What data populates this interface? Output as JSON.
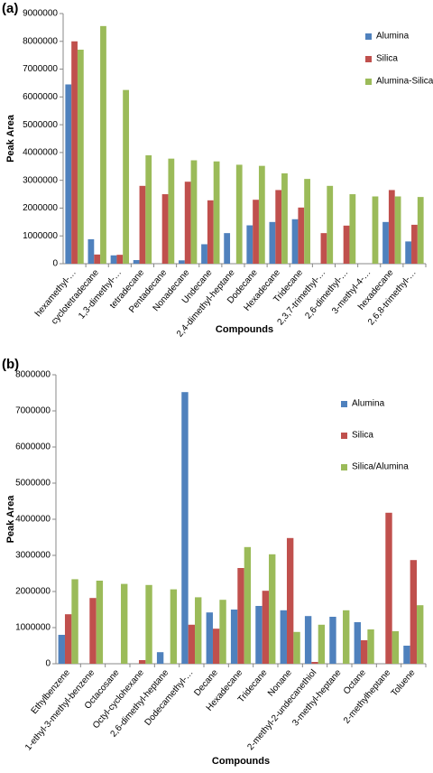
{
  "chart_data": [
    {
      "type": "bar",
      "title": "(a)",
      "ylabel": "Peak Area",
      "xlabel": "Compounds",
      "legend": "upper right",
      "grid": false,
      "ylim": [
        0,
        9000000
      ],
      "yticks": [
        0,
        1000000,
        2000000,
        3000000,
        4000000,
        5000000,
        6000000,
        7000000,
        8000000,
        9000000
      ],
      "categories": [
        "hexamethyl-…",
        "cyclotetradecane",
        "1,3-dimethyl-…",
        "tetradecane",
        "Pentadecane",
        "Nonadecane",
        "Undecane",
        "2,4-dimethyl-heptane",
        "Dodecane",
        "Hexadecane",
        "Tridecane",
        "2,3,7-trimethyl-…",
        "2,6-dimethyl-…",
        "3-methyl-4-…",
        "hexadecane",
        "2,6,8-trimethyl-…"
      ],
      "series": [
        {
          "name": "Alumina",
          "color": "#4f81bd",
          "values": [
            6450000,
            880000,
            300000,
            130000,
            0,
            120000,
            700000,
            1100000,
            1380000,
            1500000,
            1600000,
            0,
            0,
            0,
            1500000,
            800000
          ]
        },
        {
          "name": "Silica",
          "color": "#c0504d",
          "values": [
            8000000,
            330000,
            320000,
            2800000,
            2500000,
            2950000,
            2280000,
            0,
            2300000,
            2650000,
            2020000,
            1100000,
            1370000,
            0,
            2650000,
            1400000
          ]
        },
        {
          "name": "Alumina-Silica",
          "color": "#9bbb59",
          "values": [
            7700000,
            8550000,
            6250000,
            3900000,
            3780000,
            3720000,
            3680000,
            3560000,
            3520000,
            3250000,
            3050000,
            2800000,
            2500000,
            2420000,
            2420000,
            2400000
          ]
        }
      ]
    },
    {
      "type": "bar",
      "title": "(b)",
      "ylabel": "Peak Area",
      "xlabel": "Compounds",
      "legend": "upper right",
      "grid": false,
      "ylim": [
        0,
        8000000
      ],
      "yticks": [
        0,
        1000000,
        2000000,
        3000000,
        4000000,
        5000000,
        6000000,
        7000000,
        8000000
      ],
      "categories": [
        "Ethylbenzene",
        "1-ethyl-3-methyl-benzene",
        "Octacosane",
        "Octyl-cyclohexane",
        "2,6-dimethyl-heptane",
        "Dodecamethyl-…",
        "Decane",
        "Hexadecane",
        "Tridecane",
        "Nonane",
        "2-methyl-2-undecanethiol",
        "3-methyl-heptane",
        "Octane",
        "2-methylheptane",
        "Toluene"
      ],
      "series": [
        {
          "name": "Alumina",
          "color": "#4f81bd",
          "values": [
            800000,
            0,
            0,
            0,
            320000,
            7520000,
            1420000,
            1500000,
            1600000,
            1480000,
            1320000,
            1300000,
            1150000,
            0,
            500000
          ]
        },
        {
          "name": "Silica",
          "color": "#c0504d",
          "values": [
            1370000,
            1820000,
            0,
            100000,
            0,
            1080000,
            970000,
            2650000,
            2020000,
            3480000,
            50000,
            0,
            650000,
            4180000,
            2870000
          ]
        },
        {
          "name": "Silica/Alumina",
          "color": "#9bbb59",
          "values": [
            2340000,
            2300000,
            2210000,
            2180000,
            2060000,
            1840000,
            1770000,
            3230000,
            3030000,
            880000,
            1080000,
            1480000,
            950000,
            900000,
            1620000
          ]
        }
      ]
    }
  ]
}
